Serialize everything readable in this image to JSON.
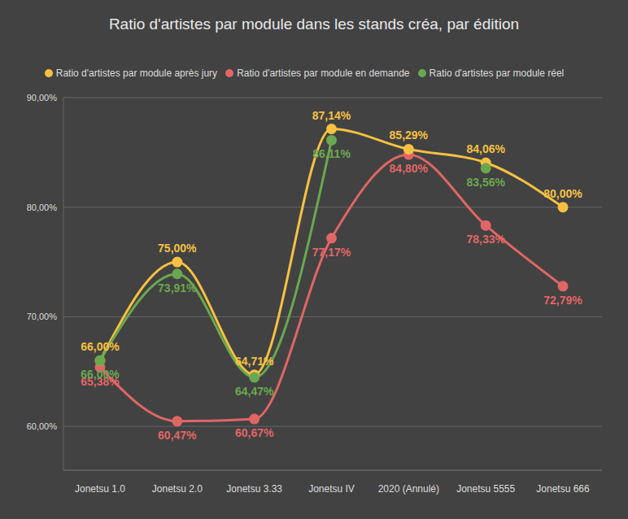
{
  "chart_data": {
    "type": "line",
    "title": "Ratio d'artistes par module dans les stands créa, par édition",
    "categories": [
      "Jonetsu 1.0",
      "Jonetsu 2.0",
      "Jonetsu 3.33",
      "Jonetsu IV",
      "2020 (Annulé)",
      "Jonetsu 5555",
      "Jonetsu 666"
    ],
    "series": [
      {
        "name": "Ratio d'artistes par module en demande",
        "color": "#e06666",
        "marker": "circle",
        "values": [
          65.38,
          60.47,
          60.67,
          77.17,
          84.8,
          78.33,
          72.79
        ],
        "value_labels": [
          "65,38%",
          "60,47%",
          "60,67%",
          "77,17%",
          "84,80%",
          "78,33%",
          "72,79%"
        ]
      },
      {
        "name": "Ratio d'artistes par module après jury",
        "color": "#f6c142",
        "marker": "circle",
        "values": [
          66.0,
          75.0,
          64.71,
          87.14,
          85.29,
          84.06,
          80.0
        ],
        "value_labels": [
          "66,00%",
          "75,00%",
          "64,71%",
          "87,14%",
          "85,29%",
          "84,06%",
          "80,00%"
        ]
      },
      {
        "name": "Ratio d'artistes par module réel",
        "color": "#6aa84f",
        "marker": "circle",
        "values": [
          66.0,
          73.91,
          64.47,
          86.11,
          null,
          83.56,
          null
        ],
        "value_labels": [
          "66,00%",
          "73,91%",
          "64,47%",
          "86,11%",
          null,
          "83,56%",
          null
        ]
      }
    ],
    "ylim": [
      56,
      90
    ],
    "yticks": [
      {
        "value": 60,
        "label": "60,00%"
      },
      {
        "value": 70,
        "label": "70,00%"
      },
      {
        "value": 80,
        "label": "80,00%"
      },
      {
        "value": 90,
        "label": "90,00%"
      }
    ],
    "grid": true,
    "legend": "top",
    "data_labels": true
  }
}
